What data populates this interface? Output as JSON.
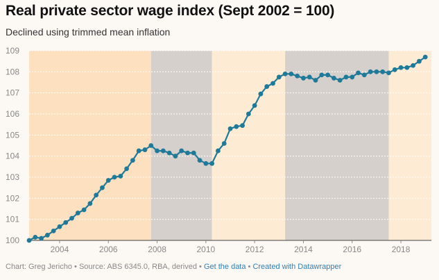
{
  "title": "Real private sector wage index (Sept 2002 = 100)",
  "subtitle": "Declined using trimmed mean inflation",
  "footer": {
    "chart_prefix": "Chart: ",
    "author": "Greg Jericho",
    "separator": " • ",
    "source_prefix": "Source: ",
    "source": "ABS 6345.0, RBA, derived",
    "get_data": "Get the data",
    "created_with": "Created with Datawrapper"
  },
  "colors": {
    "line": "#1f7a99",
    "band_light": "#fdebd3",
    "band_orange": "#fde0c0",
    "band_grey": "#d6d0cc",
    "background": "#fcf9f5"
  },
  "chart_data": {
    "type": "line",
    "title": "Real private sector wage index (Sept 2002 = 100)",
    "subtitle": "Declined using trimmed mean inflation",
    "xlabel": "",
    "ylabel": "",
    "xlim": [
      2002.75,
      2019.25
    ],
    "ylim": [
      100,
      109
    ],
    "y_ticks": [
      100,
      101,
      102,
      103,
      104,
      105,
      106,
      107,
      108,
      109
    ],
    "x_ticks": [
      2004,
      2006,
      2008,
      2010,
      2012,
      2014,
      2016,
      2018
    ],
    "grid": true,
    "bands": [
      {
        "from": 2002.75,
        "to": 2007.75,
        "fill": "orange"
      },
      {
        "from": 2007.75,
        "to": 2010.25,
        "fill": "grey"
      },
      {
        "from": 2010.25,
        "to": 2013.25,
        "fill": "light"
      },
      {
        "from": 2013.25,
        "to": 2017.5,
        "fill": "grey"
      },
      {
        "from": 2017.5,
        "to": 2019.25,
        "fill": "light"
      }
    ],
    "series": [
      {
        "values": [
          [
            2002.75,
            100.0
          ],
          [
            2003.0,
            100.15
          ],
          [
            2003.25,
            100.1
          ],
          [
            2003.5,
            100.25
          ],
          [
            2003.75,
            100.45
          ],
          [
            2004.0,
            100.65
          ],
          [
            2004.25,
            100.85
          ],
          [
            2004.5,
            101.05
          ],
          [
            2004.75,
            101.3
          ],
          [
            2005.0,
            101.45
          ],
          [
            2005.25,
            101.75
          ],
          [
            2005.5,
            102.15
          ],
          [
            2005.75,
            102.5
          ],
          [
            2006.0,
            102.85
          ],
          [
            2006.25,
            103.0
          ],
          [
            2006.5,
            103.05
          ],
          [
            2006.75,
            103.4
          ],
          [
            2007.0,
            103.8
          ],
          [
            2007.25,
            104.25
          ],
          [
            2007.5,
            104.3
          ],
          [
            2007.75,
            104.5
          ],
          [
            2008.0,
            104.25
          ],
          [
            2008.25,
            104.25
          ],
          [
            2008.5,
            104.15
          ],
          [
            2008.75,
            104.0
          ],
          [
            2009.0,
            104.25
          ],
          [
            2009.25,
            104.15
          ],
          [
            2009.5,
            104.15
          ],
          [
            2009.75,
            103.8
          ],
          [
            2010.0,
            103.65
          ],
          [
            2010.25,
            103.65
          ],
          [
            2010.5,
            104.25
          ],
          [
            2010.75,
            104.6
          ],
          [
            2011.0,
            105.3
          ],
          [
            2011.25,
            105.4
          ],
          [
            2011.5,
            105.45
          ],
          [
            2011.75,
            106.0
          ],
          [
            2012.0,
            106.4
          ],
          [
            2012.25,
            106.95
          ],
          [
            2012.5,
            107.3
          ],
          [
            2012.75,
            107.45
          ],
          [
            2013.0,
            107.75
          ],
          [
            2013.25,
            107.9
          ],
          [
            2013.5,
            107.9
          ],
          [
            2013.75,
            107.8
          ],
          [
            2014.0,
            107.7
          ],
          [
            2014.25,
            107.75
          ],
          [
            2014.5,
            107.6
          ],
          [
            2014.75,
            107.85
          ],
          [
            2015.0,
            107.85
          ],
          [
            2015.25,
            107.7
          ],
          [
            2015.5,
            107.6
          ],
          [
            2015.75,
            107.75
          ],
          [
            2016.0,
            107.75
          ],
          [
            2016.25,
            107.95
          ],
          [
            2016.5,
            107.85
          ],
          [
            2016.75,
            108.0
          ],
          [
            2017.0,
            108.0
          ],
          [
            2017.25,
            108.0
          ],
          [
            2017.5,
            107.95
          ],
          [
            2017.75,
            108.1
          ],
          [
            2018.0,
            108.2
          ],
          [
            2018.25,
            108.2
          ],
          [
            2018.5,
            108.3
          ],
          [
            2018.75,
            108.5
          ],
          [
            2019.0,
            108.7
          ]
        ]
      }
    ]
  }
}
